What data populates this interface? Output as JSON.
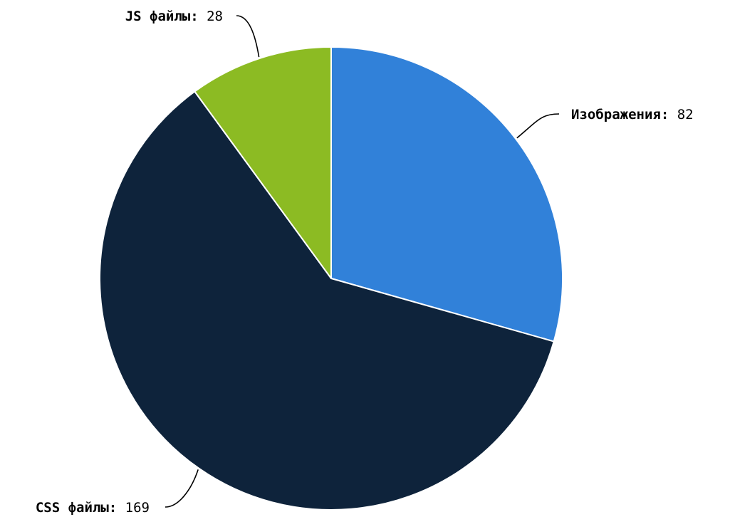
{
  "chart_data": {
    "type": "pie",
    "title": "",
    "start_angle": "12 o'clock",
    "direction": "clockwise",
    "separator": ": ",
    "slices": [
      {
        "label": "Изображения",
        "value": 82,
        "color": "#3181d9"
      },
      {
        "label": "CSS файлы",
        "value": 169,
        "color": "#0e233b"
      },
      {
        "label": "JS файлы",
        "value": 28,
        "color": "#8cbb23"
      }
    ]
  }
}
